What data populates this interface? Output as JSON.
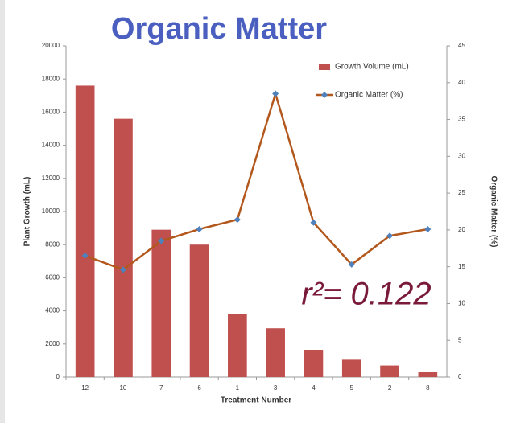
{
  "chart_data": {
    "type": "bar",
    "title": "Organic Matter",
    "categories": [
      "12",
      "10",
      "7",
      "6",
      "1",
      "3",
      "4",
      "5",
      "2",
      "8"
    ],
    "series": [
      {
        "name": "Growth Volume (mL)",
        "type": "bar",
        "color": "#c0504d",
        "values": [
          17600,
          15600,
          8900,
          8000,
          3800,
          2950,
          1650,
          1050,
          700,
          300
        ]
      },
      {
        "name": "Organic Matter (%)",
        "type": "line",
        "axis": "y2",
        "color": "#b3581c",
        "marker_color": "#4f81bd",
        "values": [
          16.5,
          14.6,
          18.5,
          20.1,
          21.4,
          38.5,
          21.0,
          15.3,
          19.2,
          20.1
        ]
      }
    ],
    "xlabel": "Treatment Number",
    "ylabel": "Plant Growth (mL)",
    "y2label": "Organic Matter (%)",
    "ylim": [
      0,
      20000
    ],
    "yticks": [
      0,
      2000,
      4000,
      6000,
      8000,
      10000,
      12000,
      14000,
      16000,
      18000,
      20000
    ],
    "y2lim": [
      0,
      45
    ],
    "y2ticks": [
      0,
      5,
      10,
      15,
      20,
      25,
      30,
      35,
      40,
      45
    ],
    "annotation": "r²= 0.122",
    "legend": "upper right"
  }
}
